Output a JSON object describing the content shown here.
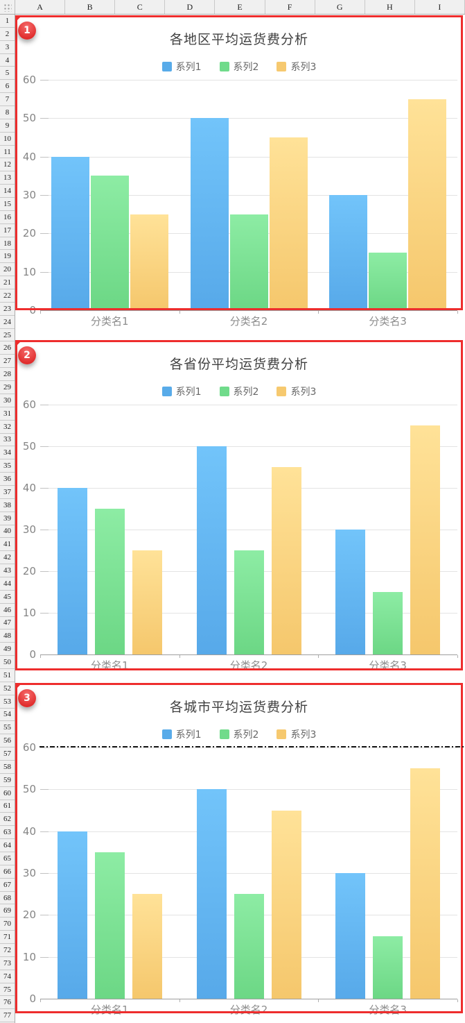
{
  "window": {
    "app_context": "Excel worksheet with three embedded bar charts"
  },
  "spreadsheet": {
    "select_all_icon": "grid-dots-icon",
    "columns": [
      "A",
      "B",
      "C",
      "D",
      "E",
      "F",
      "G",
      "H",
      "I"
    ],
    "row_count": 77,
    "first_row": 1
  },
  "annotations": {
    "badges": [
      "1",
      "2",
      "3"
    ],
    "border_color": "#ee2d2d"
  },
  "page_break_line": {
    "style": "dash-dot",
    "color": "#161616"
  },
  "chart_data": [
    {
      "type": "bar",
      "title": "各地区平均运货费分析",
      "categories": [
        "分类名1",
        "分类名2",
        "分类名3"
      ],
      "series": [
        {
          "name": "系列1",
          "values": [
            40,
            50,
            30
          ]
        },
        {
          "name": "系列2",
          "values": [
            35,
            25,
            15
          ]
        },
        {
          "name": "系列3",
          "values": [
            25,
            45,
            55
          ]
        }
      ],
      "ylim": [
        0,
        60
      ],
      "yticks": [
        0,
        10,
        20,
        30,
        40,
        50,
        60
      ],
      "legend_position": "top",
      "grid": true
    },
    {
      "type": "bar",
      "title": "各省份平均运货费分析",
      "categories": [
        "分类名1",
        "分类名2",
        "分类名3"
      ],
      "series": [
        {
          "name": "系列1",
          "values": [
            40,
            50,
            30
          ]
        },
        {
          "name": "系列2",
          "values": [
            35,
            25,
            15
          ]
        },
        {
          "name": "系列3",
          "values": [
            25,
            45,
            55
          ]
        }
      ],
      "ylim": [
        0,
        60
      ],
      "yticks": [
        0,
        10,
        20,
        30,
        40,
        50,
        60
      ],
      "legend_position": "top",
      "grid": true
    },
    {
      "type": "bar",
      "title": "各城市平均运货费分析",
      "categories": [
        "分类名1",
        "分类名2",
        "分类名3"
      ],
      "series": [
        {
          "name": "系列1",
          "values": [
            40,
            50,
            30
          ]
        },
        {
          "name": "系列2",
          "values": [
            35,
            25,
            15
          ]
        },
        {
          "name": "系列3",
          "values": [
            25,
            45,
            55
          ]
        }
      ],
      "ylim": [
        0,
        60
      ],
      "yticks": [
        0,
        10,
        20,
        30,
        40,
        50,
        60
      ],
      "legend_position": "top",
      "grid": true
    }
  ],
  "colors": {
    "series1_legend": "#58abe9",
    "series2_legend": "#70db8b",
    "series3_legend": "#f6c96f",
    "series1_gradient": [
      "#72c4fa",
      "#57a9e9"
    ],
    "series2_gradient": [
      "#8deca4",
      "#6cd785"
    ],
    "series3_gradient": [
      "#ffe298",
      "#f5c76c"
    ],
    "gridline": "#e3e3e3",
    "axis_line": "#9e9e9e",
    "title_text": "#404040",
    "legend_text": "#666666",
    "axis_label_text": "#848484",
    "header_bg": "#f0f0f0",
    "header_border": "#c9c9c9",
    "header_text": "#222222",
    "annotation_red": "#ee2d2d"
  }
}
